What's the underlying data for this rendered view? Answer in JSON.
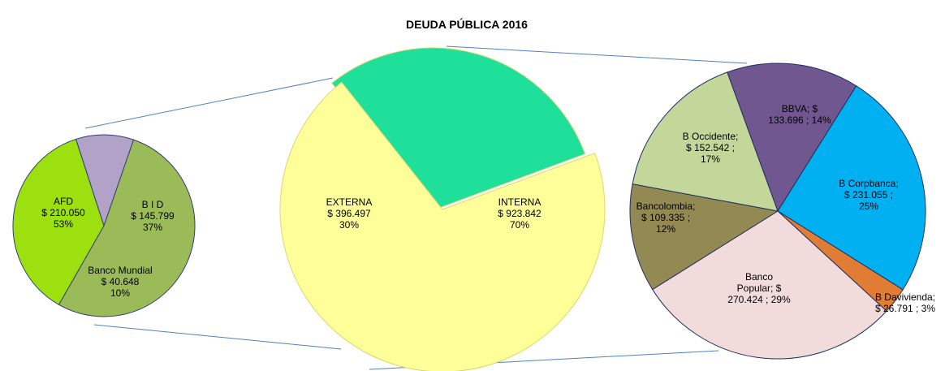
{
  "chart_data": [
    {
      "type": "pie",
      "labels": [
        [
          "AFD",
          "$ 210.050",
          "53%"
        ],
        [
          "B I D",
          "$ 145.799",
          "37%"
        ],
        [
          "Banco Mundial",
          "$ 40.648",
          "10%"
        ]
      ],
      "values": [
        210050,
        145799,
        40648
      ],
      "colors": [
        "#9bbb59",
        "#9de010",
        "#b3a2c7"
      ]
    },
    {
      "type": "pie",
      "title": "DEUDA PÚBLICA 2016",
      "labels": [
        [
          "EXTERNA",
          "$ 396.497",
          "30%"
        ],
        [
          "INTERNA",
          "$ 923.842",
          "70%"
        ]
      ],
      "values": [
        396497,
        923842
      ],
      "colors": [
        "#1fe09a",
        "#ffff99"
      ]
    },
    {
      "type": "pie",
      "labels": [
        [
          "BBVA; $",
          "133.696 ; 14%"
        ],
        [
          "B Corpbanca;",
          "$ 231.055 ;",
          "25%"
        ],
        [
          "B Davivienda;",
          "$ 26.791 ; 3%"
        ],
        [
          "Banco",
          "Popular; $",
          "270.424 ; 29%"
        ],
        [
          "Bancolombia;",
          "$ 109.335 ;",
          "12%"
        ],
        [
          "B Occidente;",
          "$ 152.542 ;",
          "17%"
        ]
      ],
      "values": [
        133696,
        231055,
        26791,
        270424,
        109335,
        152542
      ],
      "colors": [
        "#70578f",
        "#00b0f0",
        "#e07c33",
        "#f2dcdb",
        "#938953",
        "#c4d79b"
      ]
    }
  ]
}
